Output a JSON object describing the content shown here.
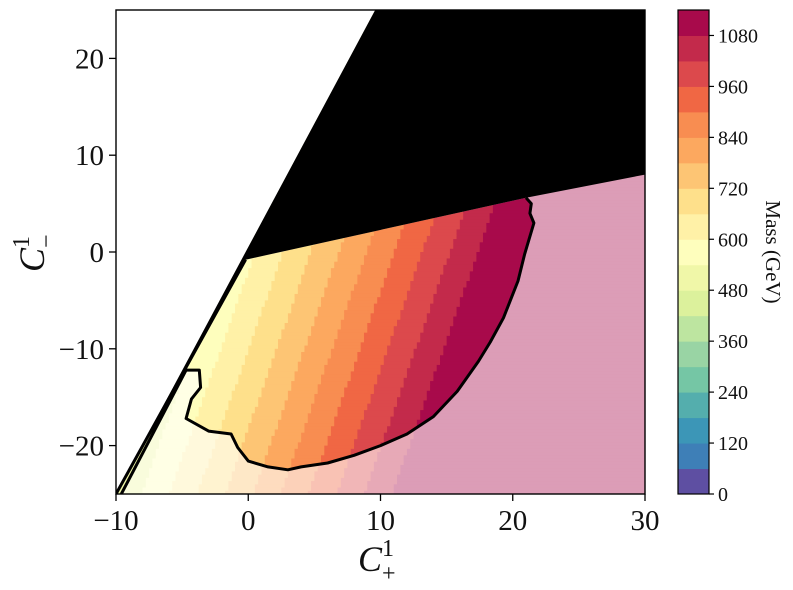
{
  "chart_data": {
    "type": "heatmap",
    "xlabel": {
      "symbol": "C",
      "superscript": "1",
      "subscript": "+"
    },
    "ylabel": {
      "symbol": "C",
      "superscript": "1",
      "subscript": "−"
    },
    "xlim": [
      -10,
      30
    ],
    "ylim": [
      -25,
      25
    ],
    "x_ticks": [
      -10,
      0,
      10,
      20,
      30
    ],
    "y_ticks": [
      -20,
      -10,
      0,
      10,
      20
    ],
    "x_tick_labels": [
      "−10",
      "0",
      "10",
      "20",
      "30"
    ],
    "y_tick_labels": [
      "−20",
      "−10",
      "0",
      "10",
      "20"
    ],
    "colorbar": {
      "label": "Mass (GeV)",
      "min": 0,
      "max": 1140,
      "level_step": 60,
      "ticks": [
        0,
        120,
        240,
        360,
        480,
        600,
        720,
        840,
        960,
        1080
      ],
      "tick_labels": [
        "0",
        "120",
        "240",
        "360",
        "480",
        "600",
        "720",
        "840",
        "960",
        "1080"
      ],
      "colormap": "Spectral_r",
      "colors": [
        "#5e4fa2",
        "#3e7fb7",
        "#3c96b7",
        "#54aead",
        "#75c6a5",
        "#99d4a4",
        "#bde5a0",
        "#dcf19c",
        "#f0f7a8",
        "#fefebd",
        "#fff1a7",
        "#fee08b",
        "#fdc574",
        "#fca85f",
        "#f88d51",
        "#f06744",
        "#dc494c",
        "#c32a4b",
        "#a80a4b"
      ]
    },
    "mass_field": {
      "x0": -10,
      "y0": 0,
      "dMass_dx": 28.5,
      "dMass_dy": -7.4,
      "mass_at_x0_y0": 300
    },
    "excluded_region_color": "#000000",
    "excluded_region": [
      [
        -10,
        -25
      ],
      [
        -0.2,
        -0.8
      ],
      [
        21,
        5.6
      ],
      [
        30,
        8
      ],
      [
        30,
        25
      ],
      [
        9.6,
        25
      ]
    ],
    "contour_line": [
      [
        -9.6,
        -25
      ],
      [
        -4.7,
        -12.2
      ],
      [
        -3.7,
        -12.2
      ],
      [
        -3.6,
        -14
      ],
      [
        -4.3,
        -15.2
      ],
      [
        -4.7,
        -17.2
      ],
      [
        -3,
        -18.5
      ],
      [
        -1.3,
        -18.8
      ],
      [
        -0.8,
        -20.2
      ],
      [
        0,
        -21.6
      ],
      [
        1.5,
        -22.2
      ],
      [
        3,
        -22.5
      ],
      [
        4,
        -22.2
      ],
      [
        6,
        -21.8
      ],
      [
        8,
        -21
      ],
      [
        10,
        -20
      ],
      [
        12,
        -18.8
      ],
      [
        14,
        -17
      ],
      [
        15.8,
        -14.4
      ],
      [
        17.4,
        -11.3
      ],
      [
        18.3,
        -9.3
      ],
      [
        19.3,
        -6.8
      ],
      [
        20.4,
        -3
      ],
      [
        20.9,
        -0.2
      ],
      [
        21.6,
        3
      ],
      [
        21.3,
        4
      ],
      [
        21.4,
        5
      ],
      [
        21,
        5.6
      ]
    ],
    "allowed_region_label": null,
    "shaded_outside_contour": true,
    "grid": false,
    "legend": null
  }
}
